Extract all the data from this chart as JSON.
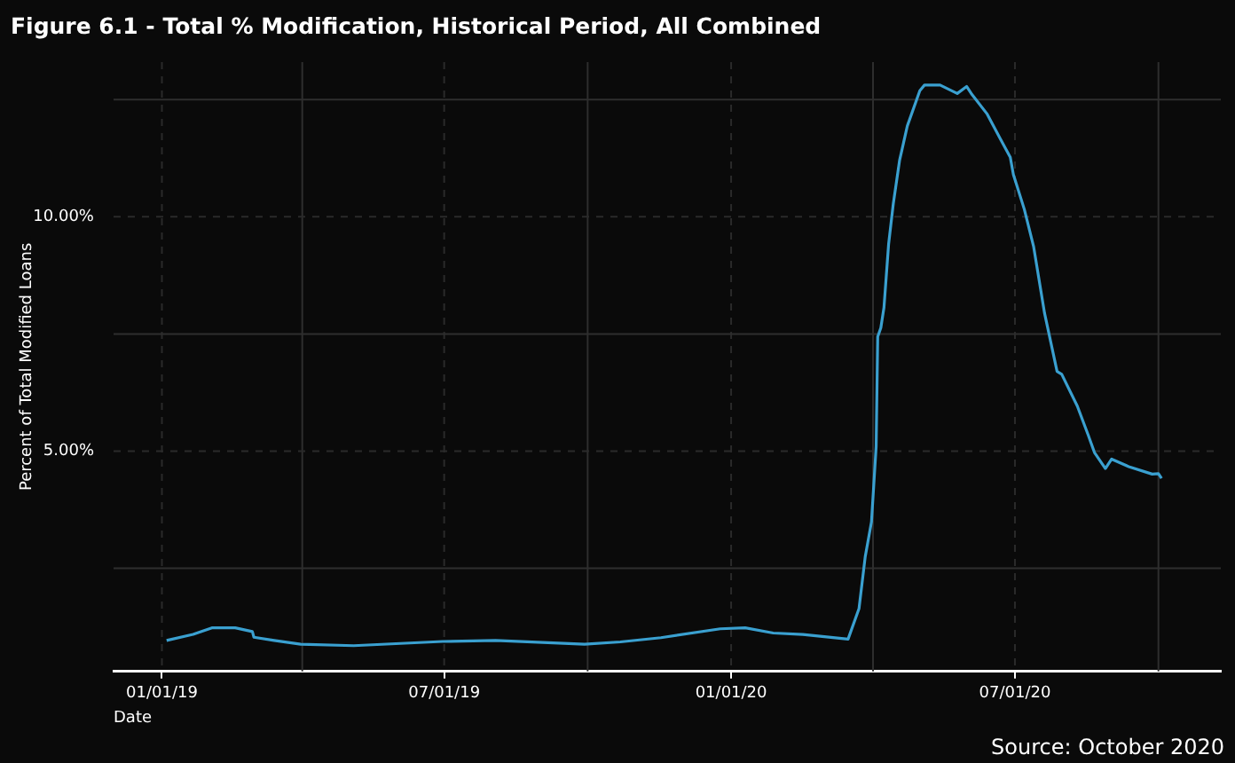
{
  "chart_data": {
    "type": "line",
    "title": "Figure 6.1 - Total % Modification, Historical Period, All Combined",
    "xlabel": "Date",
    "ylabel": "Percent of Total Modified Loans",
    "annotations": [
      "Source: October 2020"
    ],
    "x": [
      "2019-01-04",
      "2019-01-21",
      "2019-02-02",
      "2019-02-17",
      "2019-02-28",
      "2019-03-01",
      "2019-03-14",
      "2019-03-31",
      "2019-05-04",
      "2019-06-30",
      "2019-08-03",
      "2019-09-29",
      "2019-10-22",
      "2019-11-17",
      "2019-12-25",
      "2020-01-10",
      "2020-01-28",
      "2020-02-16",
      "2020-03-16",
      "2020-03-23",
      "2020-03-27",
      "2020-03-31",
      "2020-04-03",
      "2020-04-04",
      "2020-04-06",
      "2020-04-08",
      "2020-04-11",
      "2020-04-14",
      "2020-04-18",
      "2020-04-23",
      "2020-05-01",
      "2020-05-04",
      "2020-05-14",
      "2020-05-25",
      "2020-05-31",
      "2020-06-03",
      "2020-06-13",
      "2020-06-22",
      "2020-06-28",
      "2020-06-30",
      "2020-07-07",
      "2020-07-13",
      "2020-07-20",
      "2020-07-28",
      "2020-07-31",
      "2020-08-10",
      "2020-08-17",
      "2020-08-21",
      "2020-08-28",
      "2020-09-01",
      "2020-09-12",
      "2020-09-27",
      "2020-10-01",
      "2020-10-03"
    ],
    "series": [
      {
        "color": "#3aa0d0",
        "values": [
          0.96,
          1.09,
          1.23,
          1.23,
          1.15,
          1.03,
          0.96,
          0.88,
          0.85,
          0.94,
          0.96,
          0.88,
          0.93,
          1.02,
          1.21,
          1.23,
          1.12,
          1.09,
          0.99,
          1.64,
          2.75,
          3.49,
          5.1,
          7.44,
          7.63,
          8.06,
          9.42,
          10.28,
          11.2,
          11.94,
          12.69,
          12.81,
          12.81,
          12.63,
          12.78,
          12.63,
          12.2,
          11.64,
          11.27,
          10.9,
          10.16,
          9.36,
          7.94,
          6.7,
          6.64,
          5.96,
          5.34,
          4.97,
          4.63,
          4.83,
          4.67,
          4.51,
          4.52,
          4.42
        ]
      }
    ],
    "xlim": [
      "2018-12-01",
      "2020-11-10"
    ],
    "xticks": [
      {
        "value": "2019-01-01",
        "label": "01/01/19"
      },
      {
        "value": "2019-04-01",
        "label": null
      },
      {
        "value": "2019-07-01",
        "label": "07/01/19"
      },
      {
        "value": "2019-10-01",
        "label": null
      },
      {
        "value": "2020-01-01",
        "label": "01/01/20"
      },
      {
        "value": "2020-04-01",
        "label": null
      },
      {
        "value": "2020-07-01",
        "label": "07/01/20"
      },
      {
        "value": "2020-10-01",
        "label": null
      }
    ],
    "ylim": [
      0.3,
      13.3
    ],
    "yticks": [
      {
        "value": 2.5,
        "label": null
      },
      {
        "value": 5,
        "label": "5.00%"
      },
      {
        "value": 7.5,
        "label": null
      },
      {
        "value": 10,
        "label": "10.00%"
      },
      {
        "value": 12.5,
        "label": null
      }
    ],
    "grid": true,
    "marker": "none",
    "line_style": "solid"
  }
}
